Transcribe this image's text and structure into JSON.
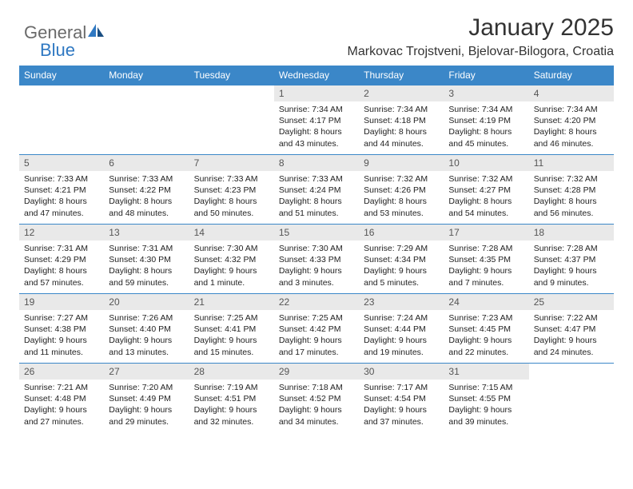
{
  "logo": {
    "text1": "General",
    "text2": "Blue",
    "color1": "#6a6a6a",
    "color2": "#2f78c2"
  },
  "title": "January 2025",
  "location": "Markovac Trojstveni, Bjelovar-Bilogora, Croatia",
  "colors": {
    "header_bg": "#3b87c8",
    "header_text": "#ffffff",
    "daynum_bg": "#e9e9e9",
    "daynum_text": "#555555",
    "cell_border": "#3b87c8",
    "body_text": "#222222"
  },
  "typography": {
    "title_fontsize": 30,
    "location_fontsize": 16,
    "header_fontsize": 12,
    "daynum_fontsize": 12,
    "daytext_fontsize": 10.5
  },
  "weekdays": [
    "Sunday",
    "Monday",
    "Tuesday",
    "Wednesday",
    "Thursday",
    "Friday",
    "Saturday"
  ],
  "weeks": [
    [
      null,
      null,
      null,
      {
        "n": "1",
        "sr": "7:34 AM",
        "ss": "4:17 PM",
        "dh": "8",
        "dm": "43"
      },
      {
        "n": "2",
        "sr": "7:34 AM",
        "ss": "4:18 PM",
        "dh": "8",
        "dm": "44"
      },
      {
        "n": "3",
        "sr": "7:34 AM",
        "ss": "4:19 PM",
        "dh": "8",
        "dm": "45"
      },
      {
        "n": "4",
        "sr": "7:34 AM",
        "ss": "4:20 PM",
        "dh": "8",
        "dm": "46"
      }
    ],
    [
      {
        "n": "5",
        "sr": "7:33 AM",
        "ss": "4:21 PM",
        "dh": "8",
        "dm": "47"
      },
      {
        "n": "6",
        "sr": "7:33 AM",
        "ss": "4:22 PM",
        "dh": "8",
        "dm": "48"
      },
      {
        "n": "7",
        "sr": "7:33 AM",
        "ss": "4:23 PM",
        "dh": "8",
        "dm": "50"
      },
      {
        "n": "8",
        "sr": "7:33 AM",
        "ss": "4:24 PM",
        "dh": "8",
        "dm": "51"
      },
      {
        "n": "9",
        "sr": "7:32 AM",
        "ss": "4:26 PM",
        "dh": "8",
        "dm": "53"
      },
      {
        "n": "10",
        "sr": "7:32 AM",
        "ss": "4:27 PM",
        "dh": "8",
        "dm": "54"
      },
      {
        "n": "11",
        "sr": "7:32 AM",
        "ss": "4:28 PM",
        "dh": "8",
        "dm": "56"
      }
    ],
    [
      {
        "n": "12",
        "sr": "7:31 AM",
        "ss": "4:29 PM",
        "dh": "8",
        "dm": "57"
      },
      {
        "n": "13",
        "sr": "7:31 AM",
        "ss": "4:30 PM",
        "dh": "8",
        "dm": "59"
      },
      {
        "n": "14",
        "sr": "7:30 AM",
        "ss": "4:32 PM",
        "dh": "9",
        "dm": "1"
      },
      {
        "n": "15",
        "sr": "7:30 AM",
        "ss": "4:33 PM",
        "dh": "9",
        "dm": "3"
      },
      {
        "n": "16",
        "sr": "7:29 AM",
        "ss": "4:34 PM",
        "dh": "9",
        "dm": "5"
      },
      {
        "n": "17",
        "sr": "7:28 AM",
        "ss": "4:35 PM",
        "dh": "9",
        "dm": "7"
      },
      {
        "n": "18",
        "sr": "7:28 AM",
        "ss": "4:37 PM",
        "dh": "9",
        "dm": "9"
      }
    ],
    [
      {
        "n": "19",
        "sr": "7:27 AM",
        "ss": "4:38 PM",
        "dh": "9",
        "dm": "11"
      },
      {
        "n": "20",
        "sr": "7:26 AM",
        "ss": "4:40 PM",
        "dh": "9",
        "dm": "13"
      },
      {
        "n": "21",
        "sr": "7:25 AM",
        "ss": "4:41 PM",
        "dh": "9",
        "dm": "15"
      },
      {
        "n": "22",
        "sr": "7:25 AM",
        "ss": "4:42 PM",
        "dh": "9",
        "dm": "17"
      },
      {
        "n": "23",
        "sr": "7:24 AM",
        "ss": "4:44 PM",
        "dh": "9",
        "dm": "19"
      },
      {
        "n": "24",
        "sr": "7:23 AM",
        "ss": "4:45 PM",
        "dh": "9",
        "dm": "22"
      },
      {
        "n": "25",
        "sr": "7:22 AM",
        "ss": "4:47 PM",
        "dh": "9",
        "dm": "24"
      }
    ],
    [
      {
        "n": "26",
        "sr": "7:21 AM",
        "ss": "4:48 PM",
        "dh": "9",
        "dm": "27"
      },
      {
        "n": "27",
        "sr": "7:20 AM",
        "ss": "4:49 PM",
        "dh": "9",
        "dm": "29"
      },
      {
        "n": "28",
        "sr": "7:19 AM",
        "ss": "4:51 PM",
        "dh": "9",
        "dm": "32"
      },
      {
        "n": "29",
        "sr": "7:18 AM",
        "ss": "4:52 PM",
        "dh": "9",
        "dm": "34"
      },
      {
        "n": "30",
        "sr": "7:17 AM",
        "ss": "4:54 PM",
        "dh": "9",
        "dm": "37"
      },
      {
        "n": "31",
        "sr": "7:15 AM",
        "ss": "4:55 PM",
        "dh": "9",
        "dm": "39"
      },
      null
    ]
  ],
  "cell_template": {
    "sunrise_prefix": "Sunrise: ",
    "sunset_prefix": "Sunset: ",
    "daylight_prefix": "Daylight: ",
    "hours_word": " hours",
    "and_word": "and ",
    "minutes_word_singular": " minute.",
    "minutes_word_plural": " minutes."
  }
}
